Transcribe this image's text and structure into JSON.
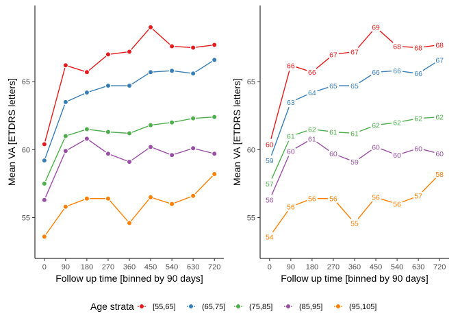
{
  "chart_data": [
    {
      "type": "line",
      "panel": "left",
      "xlabel": "Follow up time [binned by 90 days]",
      "ylabel": "Mean VA [ETDRS letters]",
      "x": [
        0,
        90,
        180,
        270,
        360,
        450,
        540,
        630,
        720
      ],
      "xticks": [
        "0",
        "90",
        "180",
        "270",
        "360",
        "450",
        "540",
        "630",
        "720"
      ],
      "yticks": [
        55,
        60,
        65
      ],
      "ylim": [
        52.0,
        70.6
      ],
      "xlim": [
        -40,
        760
      ],
      "grid": false,
      "data_labels": false,
      "series": [
        {
          "name": "[55,65]",
          "color": "#e41a1c",
          "values": [
            60.4,
            66.2,
            65.7,
            67.0,
            67.2,
            69.0,
            67.6,
            67.5,
            67.7
          ]
        },
        {
          "name": "(65,75]",
          "color": "#377eb8",
          "values": [
            59.2,
            63.5,
            64.2,
            64.7,
            64.7,
            65.7,
            65.8,
            65.6,
            66.6
          ]
        },
        {
          "name": "(75,85]",
          "color": "#4daf4a",
          "values": [
            57.5,
            61.0,
            61.5,
            61.3,
            61.2,
            61.8,
            62.0,
            62.3,
            62.4
          ]
        },
        {
          "name": "(85,95]",
          "color": "#984ea3",
          "values": [
            56.3,
            59.9,
            60.8,
            59.7,
            59.1,
            60.2,
            59.6,
            60.1,
            59.7
          ]
        },
        {
          "name": "(95,105]",
          "color": "#ff7f00",
          "values": [
            53.6,
            55.8,
            56.4,
            56.4,
            54.6,
            56.5,
            56.0,
            56.6,
            58.2
          ]
        }
      ]
    },
    {
      "type": "line",
      "panel": "right",
      "xlabel": "Follow up time [binned by 90 days]",
      "ylabel": "Mean VA [ETDRS letters]",
      "x": [
        0,
        90,
        180,
        270,
        360,
        450,
        540,
        630,
        720
      ],
      "xticks": [
        "0",
        "90",
        "180",
        "270",
        "360",
        "450",
        "540",
        "630",
        "720"
      ],
      "yticks": [
        55,
        60,
        65
      ],
      "ylim": [
        52.0,
        70.6
      ],
      "xlim": [
        -40,
        760
      ],
      "grid": false,
      "data_labels": true,
      "series": [
        {
          "name": "[55,65]",
          "color": "#e41a1c",
          "values": [
            60.4,
            66.2,
            65.7,
            67.0,
            67.2,
            69.0,
            67.6,
            67.5,
            67.7
          ],
          "labels": [
            "60",
            "66",
            "66",
            "67",
            "67",
            "69",
            "68",
            "68",
            "68"
          ]
        },
        {
          "name": "(65,75]",
          "color": "#377eb8",
          "values": [
            59.2,
            63.5,
            64.2,
            64.7,
            64.7,
            65.7,
            65.8,
            65.6,
            66.6
          ],
          "labels": [
            "59",
            "63",
            "64",
            "65",
            "65",
            "66",
            "66",
            "66",
            "67"
          ]
        },
        {
          "name": "(75,85]",
          "color": "#4daf4a",
          "values": [
            57.5,
            61.0,
            61.5,
            61.3,
            61.2,
            61.8,
            62.0,
            62.3,
            62.4
          ],
          "labels": [
            "57",
            "61",
            "62",
            "61",
            "61",
            "62",
            "62",
            "62",
            "62"
          ]
        },
        {
          "name": "(85,95]",
          "color": "#984ea3",
          "values": [
            56.3,
            59.9,
            60.8,
            59.7,
            59.1,
            60.2,
            59.6,
            60.1,
            59.7
          ],
          "labels": [
            "56",
            "60",
            "61",
            "60",
            "59",
            "60",
            "60",
            "60",
            "60"
          ]
        },
        {
          "name": "(95,105]",
          "color": "#ff7f00",
          "values": [
            53.6,
            55.8,
            56.4,
            56.4,
            54.6,
            56.5,
            56.0,
            56.6,
            58.2
          ],
          "labels": [
            "54",
            "56",
            "56",
            "56",
            "55",
            "56",
            "56",
            "57",
            "58"
          ]
        }
      ]
    }
  ],
  "legend": {
    "title": "Age strata",
    "position": "bottom",
    "items": [
      {
        "label": "[55,65]",
        "color": "#e41a1c"
      },
      {
        "label": "(65,75]",
        "color": "#377eb8"
      },
      {
        "label": "(75,85]",
        "color": "#4daf4a"
      },
      {
        "label": "(85,95]",
        "color": "#984ea3"
      },
      {
        "label": "(95,105]",
        "color": "#ff7f00"
      }
    ]
  }
}
